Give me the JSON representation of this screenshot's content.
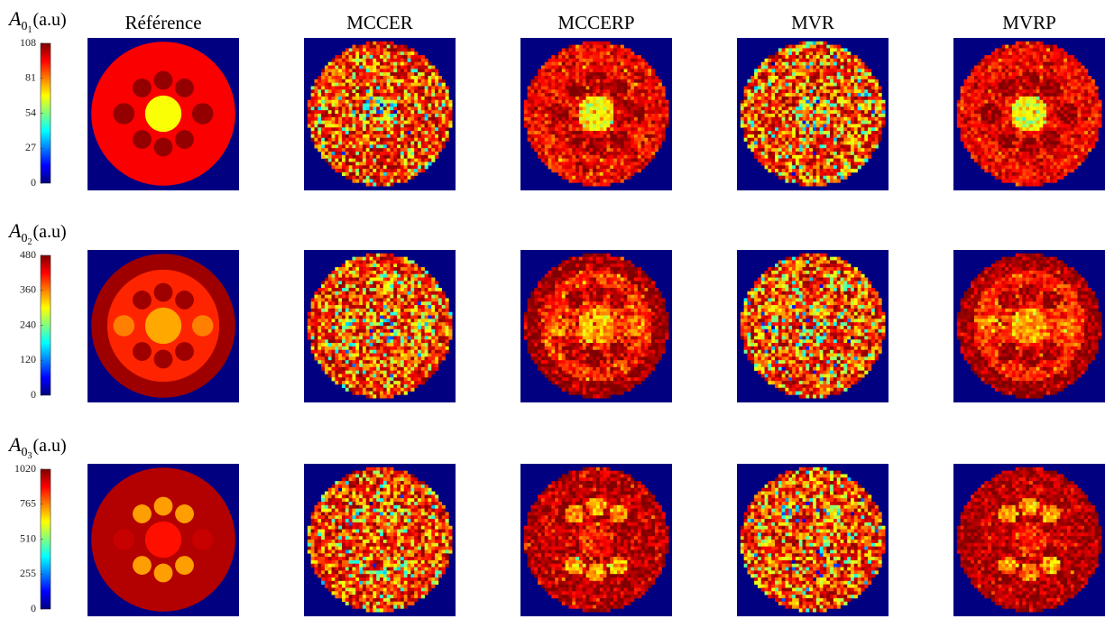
{
  "figure": {
    "column_titles": [
      "Référence",
      "MCCER",
      "MCCERP",
      "MVR",
      "MVRP"
    ],
    "rows": [
      {
        "label": {
          "symbol": "A",
          "sub": "0",
          "subsub": "1",
          "unit": "(a.u)"
        },
        "colorbar": {
          "lim": [
            0,
            108
          ],
          "ticks": [
            0,
            27,
            54,
            81,
            108
          ]
        }
      },
      {
        "label": {
          "symbol": "A",
          "sub": "0",
          "subsub": "2",
          "unit": "(a.u)"
        },
        "colorbar": {
          "lim": [
            0,
            480
          ],
          "ticks": [
            0,
            120,
            240,
            360,
            480
          ]
        }
      },
      {
        "label": {
          "symbol": "A",
          "sub": "0",
          "subsub": "3",
          "unit": "(a.u)"
        },
        "colorbar": {
          "lim": [
            0,
            1020
          ],
          "ticks": [
            0,
            255,
            510,
            765,
            1020
          ]
        }
      }
    ]
  }
}
